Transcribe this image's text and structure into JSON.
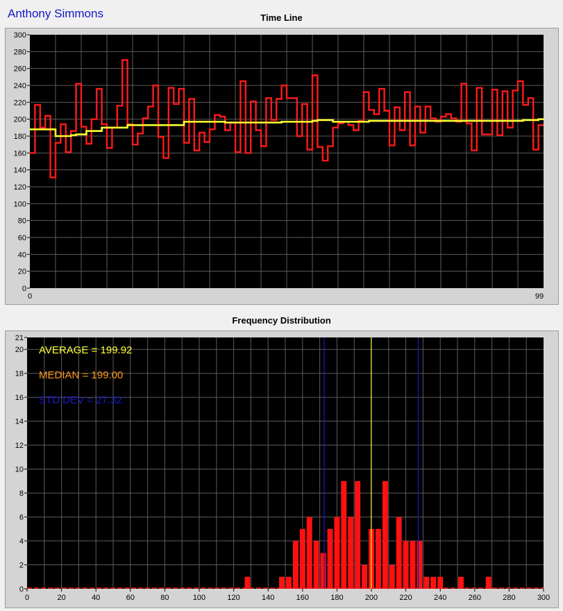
{
  "header": {
    "user_name": "Anthony Simmons"
  },
  "colors": {
    "plot_bg": "#000000",
    "grid": "#5c5c5c",
    "frame": "#d4d4d4",
    "timeline_raw": "#ff1a1a",
    "timeline_avg": "#ffff33",
    "bars": "#ff1111",
    "average": "#ffff33",
    "median": "#ff9a1a",
    "std_dev": "#1a1acc"
  },
  "chart_data": [
    {
      "type": "line",
      "title": "Time Line",
      "xlabel": "",
      "ylabel": "",
      "xlim": [
        0,
        99
      ],
      "ylim": [
        0,
        300
      ],
      "x_tick_labels": [
        "0",
        "99"
      ],
      "y_ticks": [
        0,
        20,
        40,
        60,
        80,
        100,
        120,
        140,
        160,
        180,
        200,
        220,
        240,
        260,
        280,
        300
      ],
      "grid": true,
      "step_plot": true,
      "series": [
        {
          "name": "",
          "color_key": "timeline_raw",
          "values": [
            160,
            217,
            190,
            204,
            131,
            172,
            194,
            161,
            186,
            242,
            191,
            171,
            200,
            236,
            194,
            166,
            190,
            216,
            270,
            194,
            170,
            183,
            201,
            215,
            240,
            179,
            154,
            237,
            218,
            236,
            172,
            224,
            163,
            184,
            173,
            188,
            205,
            203,
            187,
            196,
            161,
            245,
            160,
            221,
            187,
            168,
            225,
            199,
            224,
            240,
            225,
            225,
            180,
            218,
            164,
            252,
            167,
            151,
            168,
            190,
            195,
            197,
            193,
            187,
            198,
            232,
            211,
            206,
            236,
            210,
            169,
            214,
            187,
            232,
            169,
            215,
            184,
            215,
            201,
            197,
            203,
            206,
            201,
            197,
            242,
            195,
            163,
            237,
            182,
            182,
            235,
            181,
            233,
            190,
            234,
            245,
            217,
            225,
            164,
            193
          ]
        },
        {
          "name": "",
          "color_key": "timeline_avg",
          "values": [
            188,
            188,
            188,
            188,
            188,
            180,
            180,
            180,
            181,
            182,
            182,
            186,
            186,
            186,
            190,
            190,
            190,
            190,
            190,
            193,
            193,
            193,
            193,
            193,
            193,
            193,
            193,
            193,
            193,
            193,
            197,
            197,
            197,
            197,
            197,
            197,
            197,
            197,
            196,
            196,
            196,
            196,
            196,
            196,
            196,
            196,
            196,
            196,
            196,
            197,
            197,
            197,
            197,
            197,
            197,
            198,
            199,
            199,
            199,
            197,
            197,
            197,
            197,
            197,
            197,
            197,
            198,
            198,
            198,
            198,
            198,
            198,
            198,
            198,
            198,
            198,
            198,
            198,
            198,
            198,
            198,
            198,
            198,
            198,
            198,
            198,
            198,
            198,
            198,
            198,
            198,
            198,
            198,
            198,
            198,
            198,
            199,
            199,
            199,
            200
          ]
        }
      ]
    },
    {
      "type": "bar",
      "title": "Frequency Distribution",
      "xlabel": "",
      "ylabel": "",
      "xlim": [
        0,
        300
      ],
      "ylim": [
        0,
        21
      ],
      "x_ticks": [
        0,
        20,
        40,
        60,
        80,
        100,
        120,
        140,
        160,
        180,
        200,
        220,
        240,
        260,
        280,
        300
      ],
      "y_ticks": [
        0,
        2,
        4,
        6,
        8,
        10,
        12,
        14,
        16,
        18,
        20,
        21
      ],
      "grid": true,
      "bin_width": 4,
      "bins": [
        128,
        148,
        152,
        156,
        160,
        164,
        168,
        172,
        176,
        180,
        184,
        188,
        192,
        196,
        200,
        204,
        208,
        212,
        216,
        220,
        224,
        228,
        232,
        236,
        240,
        252,
        268
      ],
      "counts": [
        1,
        1,
        1,
        4,
        5,
        6,
        4,
        3,
        5,
        6,
        9,
        6,
        9,
        2,
        5,
        5,
        9,
        2,
        6,
        4,
        4,
        4,
        1,
        1,
        1,
        1,
        1
      ],
      "annotations": [
        {
          "label": "AVERAGE = 199.92",
          "value": 199.92,
          "color_key": "average"
        },
        {
          "label": "MEDIAN = 199.00",
          "value": 199.0,
          "color_key": "median"
        },
        {
          "label": "STD DEV = 27.32",
          "value": 27.32,
          "color_key": "std_dev"
        }
      ],
      "reference_lines": [
        172.6,
        199.92,
        227.24
      ]
    }
  ]
}
